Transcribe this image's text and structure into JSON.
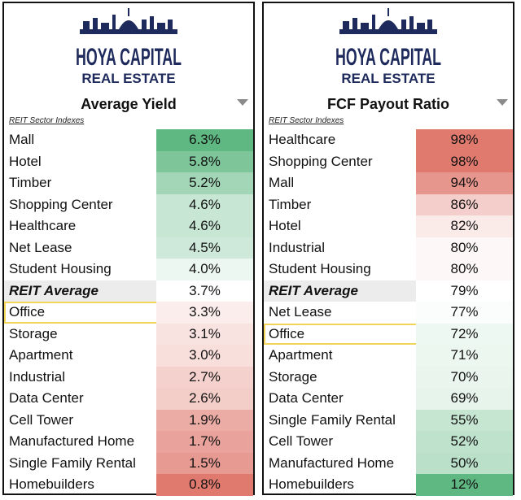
{
  "brand": {
    "logo_line1": "HOYA CAPITAL",
    "logo_line2": "REAL ESTATE"
  },
  "colors": {
    "high_green": "#5fb882",
    "mid_white": "#ffffff",
    "low_red": "#e07a6f",
    "highlight": "#f2d458",
    "logo_navy": "#1e2a5c"
  },
  "chart_data": [
    {
      "type": "table",
      "title": "Average Yield",
      "subheader": "REIT Sector Indexes",
      "color_scale": {
        "min": 0.8,
        "mid": 3.7,
        "max": 6.3,
        "high_is_green": true
      },
      "rows": [
        {
          "label": "Mall",
          "value": 6.3,
          "display": "6.3%"
        },
        {
          "label": "Hotel",
          "value": 5.8,
          "display": "5.8%"
        },
        {
          "label": "Timber",
          "value": 5.2,
          "display": "5.2%"
        },
        {
          "label": "Shopping Center",
          "value": 4.6,
          "display": "4.6%"
        },
        {
          "label": "Healthcare",
          "value": 4.6,
          "display": "4.6%"
        },
        {
          "label": "Net Lease",
          "value": 4.5,
          "display": "4.5%"
        },
        {
          "label": "Student Housing",
          "value": 4.0,
          "display": "4.0%"
        },
        {
          "label": "REIT Average",
          "value": 3.7,
          "display": "3.7%",
          "average": true
        },
        {
          "label": "Office",
          "value": 3.3,
          "display": "3.3%",
          "highlight": true
        },
        {
          "label": "Storage",
          "value": 3.1,
          "display": "3.1%"
        },
        {
          "label": "Apartment",
          "value": 3.0,
          "display": "3.0%"
        },
        {
          "label": "Industrial",
          "value": 2.7,
          "display": "2.7%"
        },
        {
          "label": "Data Center",
          "value": 2.6,
          "display": "2.6%"
        },
        {
          "label": "Cell Tower",
          "value": 1.9,
          "display": "1.9%"
        },
        {
          "label": "Manufactured Home",
          "value": 1.7,
          "display": "1.7%"
        },
        {
          "label": "Single Family Rental",
          "value": 1.5,
          "display": "1.5%"
        },
        {
          "label": "Homebuilders",
          "value": 0.8,
          "display": "0.8%"
        }
      ]
    },
    {
      "type": "table",
      "title": "FCF Payout Ratio",
      "subheader": "REIT Sector Indexes",
      "color_scale": {
        "min": 12,
        "mid": 79,
        "max": 98,
        "high_is_green": false
      },
      "rows": [
        {
          "label": "Healthcare",
          "value": 98,
          "display": "98%"
        },
        {
          "label": "Shopping Center",
          "value": 98,
          "display": "98%"
        },
        {
          "label": "Mall",
          "value": 94,
          "display": "94%"
        },
        {
          "label": "Timber",
          "value": 86,
          "display": "86%"
        },
        {
          "label": "Hotel",
          "value": 82,
          "display": "82%"
        },
        {
          "label": "Industrial",
          "value": 80,
          "display": "80%"
        },
        {
          "label": "Student Housing",
          "value": 80,
          "display": "80%"
        },
        {
          "label": "REIT Average",
          "value": 79,
          "display": "79%",
          "average": true
        },
        {
          "label": "Net Lease",
          "value": 77,
          "display": "77%"
        },
        {
          "label": "Office",
          "value": 72,
          "display": "72%",
          "highlight": true
        },
        {
          "label": "Apartment",
          "value": 71,
          "display": "71%"
        },
        {
          "label": "Storage",
          "value": 70,
          "display": "70%"
        },
        {
          "label": "Data Center",
          "value": 69,
          "display": "69%"
        },
        {
          "label": "Single Family Rental",
          "value": 55,
          "display": "55%"
        },
        {
          "label": "Cell Tower",
          "value": 52,
          "display": "52%"
        },
        {
          "label": "Manufactured Home",
          "value": 50,
          "display": "50%"
        },
        {
          "label": "Homebuilders",
          "value": 12,
          "display": "12%"
        }
      ]
    }
  ]
}
